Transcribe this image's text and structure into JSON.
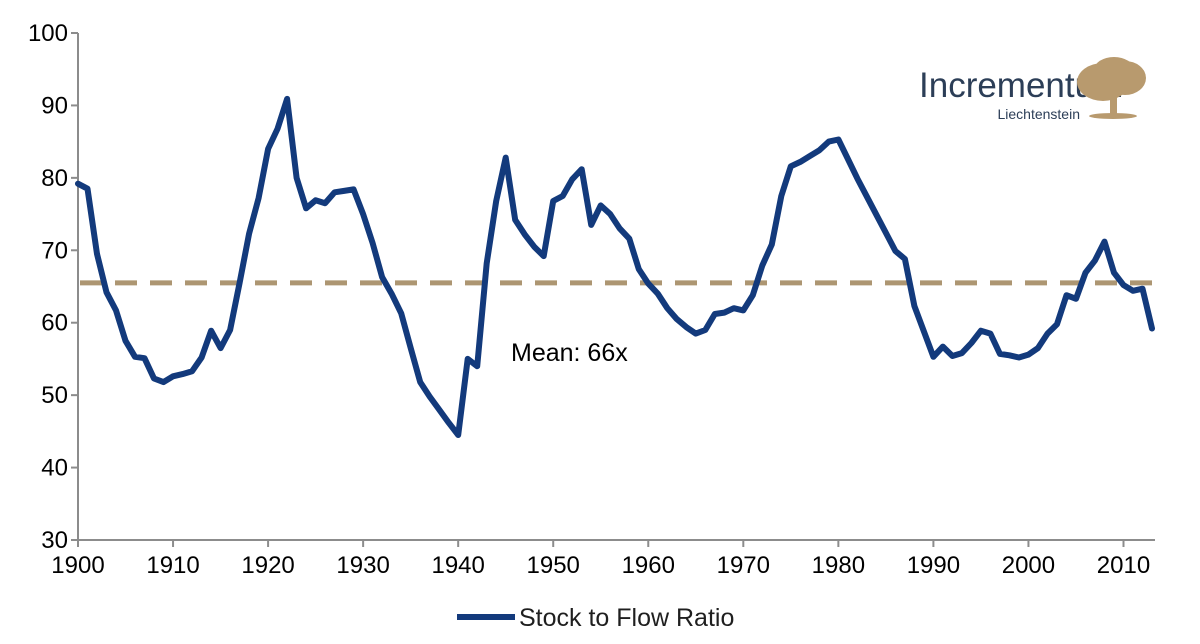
{
  "brand": {
    "name": "Incrementum",
    "subtitle": "Liechtenstein",
    "tree_color": "#b89a6e",
    "text_color": "#2c3e57"
  },
  "chart_data": {
    "type": "line",
    "title": "",
    "xlabel": "",
    "ylabel": "",
    "xlim": [
      1900,
      2013
    ],
    "ylim": [
      30,
      100
    ],
    "x_ticks": [
      "1900",
      "1910",
      "1920",
      "1930",
      "1940",
      "1950",
      "1960",
      "1970",
      "1980",
      "1990",
      "2000",
      "2010"
    ],
    "y_ticks": [
      "30",
      "40",
      "50",
      "60",
      "70",
      "80",
      "90",
      "100"
    ],
    "grid": false,
    "legend": {
      "position": "bottom",
      "entries": [
        "Stock to Flow Ratio"
      ]
    },
    "series": [
      {
        "name": "Stock to Flow Ratio",
        "color": "#133a7c",
        "x": [
          1900,
          1901,
          1902,
          1903,
          1904,
          1905,
          1906,
          1907,
          1908,
          1909,
          1910,
          1911,
          1912,
          1913,
          1914,
          1915,
          1916,
          1917,
          1918,
          1919,
          1920,
          1921,
          1922,
          1923,
          1924,
          1925,
          1926,
          1927,
          1928,
          1929,
          1930,
          1931,
          1932,
          1933,
          1934,
          1935,
          1936,
          1937,
          1938,
          1939,
          1940,
          1941,
          1942,
          1943,
          1944,
          1945,
          1946,
          1947,
          1948,
          1949,
          1950,
          1951,
          1952,
          1953,
          1954,
          1955,
          1956,
          1957,
          1958,
          1959,
          1960,
          1961,
          1962,
          1963,
          1964,
          1965,
          1966,
          1967,
          1968,
          1969,
          1970,
          1971,
          1972,
          1973,
          1974,
          1975,
          1976,
          1977,
          1978,
          1979,
          1980,
          1981,
          1982,
          1983,
          1984,
          1985,
          1986,
          1987,
          1988,
          1989,
          1990,
          1991,
          1992,
          1993,
          1994,
          1995,
          1996,
          1997,
          1998,
          1999,
          2000,
          2001,
          2002,
          2003,
          2004,
          2005,
          2006,
          2007,
          2008,
          2009,
          2010,
          2011,
          2012,
          2013
        ],
        "values": [
          79.2,
          78.5,
          69.5,
          64.2,
          61.7,
          57.5,
          55.3,
          55.1,
          52.3,
          51.8,
          52.6,
          52.9,
          53.3,
          55.2,
          58.9,
          56.5,
          59.0,
          65.5,
          72.3,
          77.2,
          84.0,
          86.8,
          90.9,
          80.0,
          75.8,
          76.9,
          76.5,
          78.0,
          78.2,
          78.4,
          75.0,
          71.0,
          66.3,
          64.0,
          61.3,
          56.5,
          51.8,
          49.8,
          48.0,
          46.2,
          44.5,
          55.0,
          54.0,
          68.2,
          76.8,
          82.8,
          74.2,
          72.2,
          70.5,
          69.2,
          76.8,
          77.5,
          79.8,
          81.2,
          73.5,
          76.2,
          75.0,
          73.0,
          71.6,
          67.4,
          65.4,
          64.0,
          62.0,
          60.5,
          59.4,
          58.5,
          59.0,
          61.2,
          61.4,
          62.0,
          61.7,
          63.8,
          67.9,
          70.8,
          77.5,
          81.6,
          82.2,
          83.0,
          83.8,
          85.0,
          85.3,
          82.6,
          79.9,
          77.4,
          74.9,
          72.4,
          69.9,
          68.8,
          62.3,
          58.8,
          55.3,
          56.7,
          55.4,
          55.8,
          57.2,
          58.9,
          58.5,
          55.7,
          55.5,
          55.2,
          55.6,
          56.5,
          58.5,
          59.8,
          63.8,
          63.3,
          66.9,
          68.6,
          71.2,
          66.9,
          65.2,
          64.4,
          64.7,
          59.2
        ]
      }
    ],
    "reference_line": {
      "value": 65.5,
      "color": "#ad9672",
      "style": "dashed"
    },
    "annotations": [
      {
        "text": "Mean: 66x"
      }
    ]
  }
}
